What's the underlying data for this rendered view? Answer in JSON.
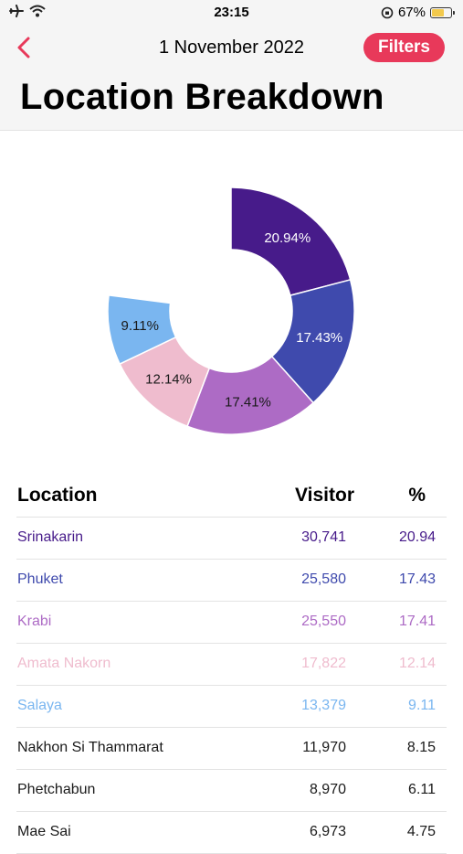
{
  "status": {
    "time": "23:15",
    "battery": "67%",
    "battery_level": 0.67
  },
  "nav": {
    "date": "1 November 2022",
    "filters_label": "Filters"
  },
  "page_title": "Location Breakdown",
  "colors": {
    "accent": "#e8395a",
    "srinakarin": "#471b8a",
    "phuket": "#3f4aad",
    "krabi": "#ad6bc5",
    "amata_nakorn": "#efbcce",
    "salaya": "#7ab6f0"
  },
  "chart_data": {
    "type": "pie",
    "donut": true,
    "categories": [
      "Srinakarin",
      "Phuket",
      "Krabi",
      "Amata Nakorn",
      "Salaya"
    ],
    "values": [
      20.94,
      17.43,
      17.41,
      12.14,
      9.11
    ],
    "colors": [
      "#471b8a",
      "#3f4aad",
      "#ad6bc5",
      "#efbcce",
      "#7ab6f0"
    ],
    "label_colors": [
      "#ffffff",
      "#ffffff",
      "#1a1a1a",
      "#1a1a1a",
      "#1a1a1a"
    ],
    "labels": [
      "20.94%",
      "17.43%",
      "17.41%",
      "12.14%",
      "9.11%"
    ]
  },
  "table": {
    "headers": {
      "location": "Location",
      "visitor": "Visitor",
      "percent": "%"
    },
    "rows": [
      {
        "location": "Srinakarin",
        "visitor": "30,741",
        "percent": "20.94",
        "color": "#471b8a"
      },
      {
        "location": "Phuket",
        "visitor": "25,580",
        "percent": "17.43",
        "color": "#3f4aad"
      },
      {
        "location": "Krabi",
        "visitor": "25,550",
        "percent": "17.41",
        "color": "#ad6bc5"
      },
      {
        "location": "Amata Nakorn",
        "visitor": "17,822",
        "percent": "12.14",
        "color": "#efbcce"
      },
      {
        "location": "Salaya",
        "visitor": "13,379",
        "percent": "9.11",
        "color": "#7ab6f0"
      },
      {
        "location": "Nakhon Si Thammarat",
        "visitor": "11,970",
        "percent": "8.15",
        "color": "#1a1a1a"
      },
      {
        "location": "Phetchabun",
        "visitor": "8,970",
        "percent": "6.11",
        "color": "#1a1a1a"
      },
      {
        "location": "Mae Sai",
        "visitor": "6,973",
        "percent": "4.75",
        "color": "#1a1a1a"
      }
    ]
  }
}
